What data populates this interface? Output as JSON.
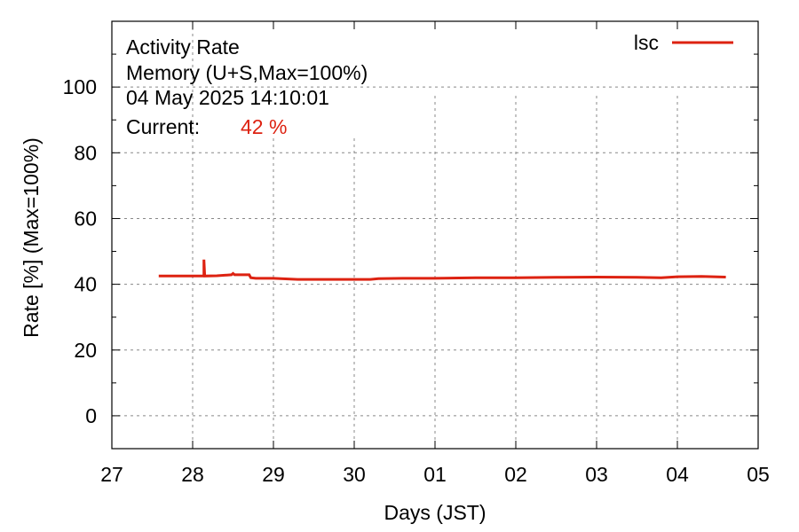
{
  "chart_data": {
    "type": "line",
    "info_lines": [
      "Activity Rate",
      "Memory (U+S,Max=100%)",
      "04 May 2025 14:10:01"
    ],
    "current": {
      "label": "Current:",
      "value": "42 %"
    },
    "xlabel": "Days (JST)",
    "ylabel": "Rate [%]  (Max=100%)",
    "xlim": [
      0,
      8
    ],
    "ylim": [
      -10,
      120
    ],
    "x_ticks": [
      {
        "x": 0,
        "label": "27"
      },
      {
        "x": 1,
        "label": "28"
      },
      {
        "x": 2,
        "label": "29"
      },
      {
        "x": 3,
        "label": "30"
      },
      {
        "x": 4,
        "label": "01"
      },
      {
        "x": 5,
        "label": "02"
      },
      {
        "x": 6,
        "label": "03"
      },
      {
        "x": 7,
        "label": "04"
      },
      {
        "x": 8,
        "label": "05"
      }
    ],
    "y_ticks": [
      0,
      20,
      40,
      60,
      80,
      100
    ],
    "grid": true,
    "legend_position": "top-right",
    "series": [
      {
        "name": "lsc",
        "color": "#dd2211",
        "x": [
          0.58,
          1.05,
          1.14,
          1.14,
          1.15,
          1.3,
          1.48,
          1.5,
          1.52,
          1.7,
          1.72,
          1.78,
          2.0,
          2.3,
          2.6,
          3.0,
          3.2,
          3.3,
          3.6,
          4.0,
          4.5,
          5.0,
          5.5,
          6.0,
          6.5,
          6.8,
          7.0,
          7.3,
          7.6
        ],
        "values": [
          42.5,
          42.5,
          42.5,
          47.5,
          42.5,
          42.6,
          42.9,
          43.3,
          42.9,
          42.9,
          42.0,
          41.8,
          41.8,
          41.5,
          41.5,
          41.5,
          41.5,
          41.7,
          41.8,
          41.8,
          42.0,
          42.0,
          42.1,
          42.2,
          42.1,
          42.0,
          42.3,
          42.4,
          42.2
        ]
      }
    ]
  }
}
